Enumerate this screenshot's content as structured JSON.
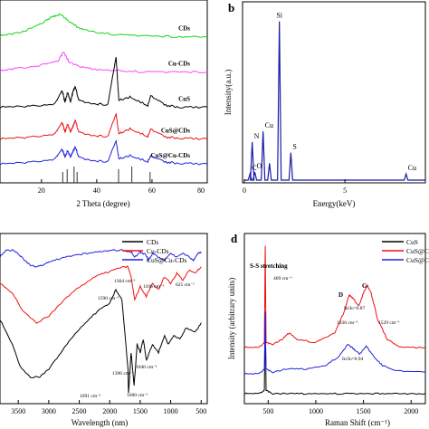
{
  "chart_data": [
    {
      "type": "line",
      "panel": "a",
      "xlabel": "2 Theta (degree)",
      "ylabel": "",
      "xlim": [
        5,
        80
      ],
      "xticks": [
        20,
        40,
        60,
        80
      ],
      "legend": "none",
      "series": [
        {
          "name": "CDs",
          "color": "#19d419",
          "x": [
            5,
            10,
            15,
            20,
            24,
            27,
            30,
            34,
            40,
            50,
            60,
            70,
            80
          ],
          "y": [
            8.45,
            8.6,
            8.8,
            9.2,
            9.6,
            9.75,
            9.3,
            8.9,
            8.65,
            8.5,
            8.45,
            8.4,
            8.4
          ]
        },
        {
          "name": "Cu-CDs",
          "color": "#ff44ff",
          "x": [
            5,
            10,
            20,
            26,
            28,
            30,
            34,
            40,
            50,
            60,
            70,
            80
          ],
          "y": [
            6.35,
            6.5,
            6.7,
            6.95,
            7.5,
            6.9,
            6.6,
            6.45,
            6.35,
            6.3,
            6.3,
            6.3
          ]
        },
        {
          "name": "CuS",
          "color": "#000000",
          "x": [
            5,
            15,
            25,
            27.5,
            28.5,
            29.5,
            30.5,
            31.5,
            32.3,
            33.5,
            38,
            44,
            47,
            48,
            52,
            58.5,
            59.5,
            65,
            70,
            80
          ],
          "y": [
            4.2,
            4.25,
            4.4,
            5.2,
            4.5,
            5.1,
            4.5,
            5.2,
            5.4,
            4.6,
            4.4,
            4.35,
            7.2,
            4.6,
            4.8,
            4.3,
            4.9,
            4.3,
            4.2,
            4.2
          ]
        },
        {
          "name": "CuS@CDs",
          "color": "#ee1111",
          "x": [
            5,
            15,
            25,
            27.5,
            28.5,
            29.5,
            30.5,
            31.5,
            32.3,
            33.5,
            38,
            44,
            47,
            48,
            52,
            58.5,
            59.5,
            65,
            70,
            80
          ],
          "y": [
            2.3,
            2.4,
            2.6,
            3.3,
            2.7,
            3.2,
            2.7,
            3.1,
            3.4,
            2.7,
            2.5,
            2.45,
            3.8,
            2.6,
            2.9,
            2.45,
            2.9,
            2.4,
            2.35,
            2.3
          ]
        },
        {
          "name": "CuS@Cu-CDs",
          "color": "#2222dd",
          "x": [
            5,
            15,
            25,
            27.5,
            28.5,
            29.5,
            30.5,
            31.5,
            32.3,
            33.5,
            38,
            44,
            47,
            48,
            52,
            58.5,
            59.5,
            65,
            70,
            80
          ],
          "y": [
            0.8,
            0.9,
            1.1,
            1.7,
            1.2,
            1.6,
            1.2,
            1.6,
            1.8,
            1.2,
            1.0,
            0.95,
            2.2,
            1.1,
            1.3,
            0.95,
            1.3,
            0.9,
            0.85,
            0.8
          ]
        }
      ],
      "reference_lines_x": [
        27.7,
        29.3,
        31.8,
        32.9,
        47.9,
        52.7,
        59.3
      ]
    },
    {
      "type": "bar",
      "panel": "b",
      "xlabel": "Energy(keV)",
      "ylabel": "Intensity(a.u.)",
      "xlim": [
        0,
        9
      ],
      "xticks": [
        0,
        5
      ],
      "ylim": [
        0,
        100
      ],
      "peaks": [
        {
          "label": "C",
          "x": 0.28,
          "y": 4
        },
        {
          "label": "O",
          "x": 0.52,
          "y": 5
        },
        {
          "label": "N",
          "x": 0.39,
          "y": 22
        },
        {
          "label": "Cu",
          "x": 0.93,
          "y": 28
        },
        {
          "label": "",
          "x": 1.25,
          "y": 10
        },
        {
          "label": "Si",
          "x": 1.74,
          "y": 90
        },
        {
          "label": "S",
          "x": 2.31,
          "y": 16
        },
        {
          "label": "Cu",
          "x": 8.04,
          "y": 4
        }
      ]
    },
    {
      "type": "line",
      "panel": "c",
      "xlabel": "Wavelength (nm)",
      "ylabel": "",
      "xlim": [
        3800,
        400
      ],
      "xticks": [
        3500,
        3000,
        2500,
        2000,
        1500,
        1000,
        500
      ],
      "legend": "top-right",
      "series": [
        {
          "name": "CDs",
          "color": "#000000",
          "x": [
            3800,
            3600,
            3450,
            3300,
            3150,
            3000,
            2800,
            2600,
            2400,
            2200,
            2000,
            1900,
            1800,
            1700,
            1691,
            1650,
            1600,
            1550,
            1500,
            1450,
            1396,
            1300,
            1200,
            1100,
            1040,
            950,
            850,
            750,
            600,
            500
          ],
          "y": [
            50,
            35,
            20,
            15,
            15,
            20,
            30,
            40,
            48,
            55,
            60,
            68,
            62,
            20,
            5,
            30,
            10,
            35,
            30,
            38,
            25,
            35,
            30,
            40,
            35,
            40,
            38,
            45,
            42,
            48
          ]
        },
        {
          "name": "Cu-CDs",
          "color": "#ee1111",
          "x": [
            3800,
            3600,
            3400,
            3200,
            3000,
            2800,
            2600,
            2400,
            2200,
            2000,
            1800,
            1700,
            1650,
            1590,
            1500,
            1400,
            1300,
            1200,
            1100,
            1000,
            900,
            800,
            700,
            600,
            500
          ],
          "y": [
            72,
            66,
            54,
            48,
            52,
            60,
            67,
            72,
            77,
            79,
            82,
            82,
            76,
            62,
            70,
            64,
            72,
            68,
            76,
            72,
            78,
            74,
            80,
            78,
            82
          ]
        },
        {
          "name": "CuS@Cu-CDs",
          "color": "#2222dd",
          "x": [
            3800,
            3700,
            3600,
            3500,
            3400,
            3300,
            3200,
            3100,
            3000,
            2800,
            2600,
            2400,
            2200,
            2000,
            1800,
            1650,
            1590,
            1500,
            1400,
            1364,
            1300,
            1200,
            1106,
            1000,
            900,
            800,
            700,
            625,
            550,
            500
          ],
          "y": [
            88,
            92,
            92,
            90,
            86,
            83,
            82,
            83,
            85,
            87,
            89,
            90,
            91,
            92,
            92,
            91,
            88,
            91,
            89,
            86,
            90,
            88,
            86,
            90,
            88,
            90,
            88,
            86,
            90,
            91
          ]
        }
      ],
      "annotations": [
        "1364 cm⁻¹",
        "1106 cm⁻¹",
        "625 cm⁻¹",
        "1590 cm⁻¹",
        "1040 cm⁻¹",
        "1396 cm⁻¹",
        "1691 cm⁻¹",
        "1600 cm⁻¹"
      ]
    },
    {
      "type": "line",
      "panel": "d",
      "xlabel": "Raman Shift (cm⁻¹)",
      "ylabel": "Intensity (arbitrary units)",
      "xlim": [
        250,
        2150
      ],
      "xticks": [
        500,
        1000,
        1500,
        2000
      ],
      "legend": "top-right",
      "series": [
        {
          "name": "CuS",
          "color": "#000000",
          "x": [
            250,
            400,
            460,
            469,
            478,
            550,
            700,
            900,
            1100,
            1300,
            1500,
            1700,
            1900,
            2150
          ],
          "y": [
            5,
            5,
            7,
            50,
            7,
            5,
            5,
            5,
            5,
            5,
            5,
            5,
            5,
            5
          ]
        },
        {
          "name": "CuS@CDs",
          "color": "#ee1111",
          "x": [
            250,
            400,
            460,
            469,
            478,
            550,
            650,
            720,
            800,
            1000,
            1200,
            1300,
            1350,
            1390,
            1450,
            1500,
            1540,
            1580,
            1650,
            1750,
            1900,
            2150
          ],
          "y": [
            33,
            33,
            36,
            95,
            36,
            35,
            38,
            42,
            38,
            36,
            42,
            55,
            65,
            63,
            58,
            66,
            71,
            66,
            50,
            38,
            33,
            33
          ]
        },
        {
          "name": "CuS@Cu-CDs",
          "color": "#2222dd",
          "x": [
            250,
            400,
            460,
            469,
            478,
            550,
            700,
            900,
            1100,
            1250,
            1336,
            1400,
            1460,
            1529,
            1600,
            1700,
            1850,
            2150
          ],
          "y": [
            17,
            17,
            20,
            55,
            20,
            18,
            20,
            20,
            22,
            28,
            35,
            32,
            29,
            34,
            28,
            22,
            19,
            18
          ]
        }
      ],
      "annotations": {
        "title_text": "S-S stretching",
        "peak_469": "469 cm⁻¹",
        "D": "D",
        "G": "G",
        "ratio_1": "Iᴅ/Iɢ=0.87",
        "peak_1336": "1336 cm⁻¹",
        "peak_1529": "1529 cm⁻¹",
        "ratio_2": "Iᴅ/Iɢ=0.94"
      }
    }
  ],
  "panel_letters": {
    "b": "b",
    "d": "d"
  }
}
